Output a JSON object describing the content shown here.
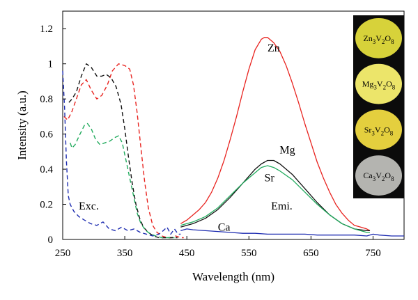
{
  "chart_data": {
    "type": "line",
    "title": "",
    "xlabel": "Wavelength (nm)",
    "ylabel": "Intensity (a.u.)",
    "xlim": [
      250,
      800
    ],
    "ylim": [
      0,
      1.3
    ],
    "x_ticks": [
      "250",
      "350",
      "450",
      "550",
      "650",
      "750"
    ],
    "x_tick_values": [
      250,
      350,
      450,
      550,
      650,
      750
    ],
    "y_ticks": [
      "0",
      "0.2",
      "0.4",
      "0.6",
      "0.8",
      "1",
      "1.2"
    ],
    "y_tick_values": [
      0,
      0.2,
      0.4,
      0.6,
      0.8,
      1.0,
      1.2
    ],
    "grid": false,
    "series": [
      {
        "name": "Zn",
        "kind": "excitation",
        "color": "#e8231f",
        "dash": true,
        "x": [
          252,
          258,
          265,
          272,
          280,
          288,
          296,
          305,
          313,
          322,
          330,
          340,
          350,
          358,
          364,
          370,
          376,
          382,
          388,
          395,
          402,
          410,
          418,
          425,
          432,
          440,
          445
        ],
        "y": [
          0.7,
          0.68,
          0.73,
          0.8,
          0.88,
          0.91,
          0.85,
          0.8,
          0.82,
          0.88,
          0.96,
          1.0,
          0.99,
          0.97,
          0.88,
          0.72,
          0.52,
          0.33,
          0.18,
          0.08,
          0.04,
          0.02,
          0.01,
          0.01,
          0.02,
          0.01,
          0.01
        ]
      },
      {
        "name": "Mg",
        "kind": "excitation",
        "color": "#111111",
        "dash": true,
        "x": [
          260,
          265,
          272,
          280,
          288,
          296,
          305,
          313,
          320,
          328,
          336,
          344,
          350,
          356,
          362,
          368,
          374,
          380,
          388,
          396,
          405,
          415,
          425,
          435
        ],
        "y": [
          0.78,
          0.8,
          0.84,
          0.93,
          1.0,
          0.98,
          0.93,
          0.93,
          0.94,
          0.92,
          0.87,
          0.77,
          0.63,
          0.47,
          0.32,
          0.2,
          0.12,
          0.07,
          0.04,
          0.02,
          0.01,
          0.01,
          0.01,
          0.01
        ]
      },
      {
        "name": "Sr",
        "kind": "excitation",
        "color": "#1faa5c",
        "dash": true,
        "x": [
          262,
          265,
          270,
          278,
          285,
          290,
          296,
          303,
          310,
          318,
          326,
          334,
          340,
          346,
          352,
          358,
          364,
          370,
          376,
          384,
          392,
          400,
          410,
          420,
          430
        ],
        "y": [
          0.55,
          0.52,
          0.54,
          0.6,
          0.65,
          0.66,
          0.63,
          0.57,
          0.54,
          0.55,
          0.56,
          0.58,
          0.59,
          0.55,
          0.45,
          0.35,
          0.25,
          0.15,
          0.09,
          0.05,
          0.03,
          0.02,
          0.01,
          0.01,
          0.01
        ]
      },
      {
        "name": "Ca",
        "kind": "excitation",
        "color": "#1c2bb0",
        "dash": true,
        "x": [
          250,
          253,
          256,
          259,
          262,
          268,
          276,
          285,
          295,
          305,
          315,
          325,
          335,
          345,
          355,
          365,
          375,
          385,
          395,
          405,
          412,
          418,
          424,
          430,
          436,
          440
        ],
        "y": [
          0.96,
          0.75,
          0.45,
          0.25,
          0.2,
          0.16,
          0.13,
          0.11,
          0.09,
          0.08,
          0.1,
          0.06,
          0.05,
          0.07,
          0.05,
          0.06,
          0.04,
          0.03,
          0.02,
          0.03,
          0.05,
          0.07,
          0.03,
          0.06,
          0.03,
          0.03
        ]
      },
      {
        "name": "Zn",
        "kind": "emission",
        "color": "#e8231f",
        "dash": false,
        "x": [
          440,
          450,
          460,
          470,
          480,
          490,
          500,
          510,
          520,
          530,
          540,
          550,
          560,
          570,
          575,
          580,
          590,
          600,
          610,
          620,
          630,
          640,
          650,
          660,
          670,
          680,
          690,
          700,
          710,
          720,
          730,
          740,
          745
        ],
        "y": [
          0.09,
          0.11,
          0.14,
          0.17,
          0.21,
          0.27,
          0.35,
          0.45,
          0.57,
          0.7,
          0.84,
          0.97,
          1.08,
          1.14,
          1.15,
          1.15,
          1.12,
          1.07,
          0.99,
          0.89,
          0.78,
          0.66,
          0.55,
          0.44,
          0.35,
          0.27,
          0.2,
          0.15,
          0.11,
          0.08,
          0.07,
          0.06,
          0.05
        ]
      },
      {
        "name": "Mg",
        "kind": "emission",
        "color": "#111111",
        "dash": false,
        "x": [
          440,
          460,
          480,
          500,
          520,
          540,
          560,
          570,
          580,
          590,
          600,
          620,
          640,
          660,
          680,
          700,
          720,
          740,
          745
        ],
        "y": [
          0.07,
          0.09,
          0.12,
          0.17,
          0.24,
          0.32,
          0.4,
          0.43,
          0.45,
          0.45,
          0.43,
          0.37,
          0.29,
          0.21,
          0.14,
          0.09,
          0.06,
          0.05,
          0.05
        ]
      },
      {
        "name": "Sr",
        "kind": "emission",
        "color": "#1faa5c",
        "dash": false,
        "x": [
          440,
          460,
          480,
          500,
          520,
          540,
          560,
          570,
          580,
          590,
          600,
          620,
          640,
          660,
          680,
          700,
          720,
          740,
          745
        ],
        "y": [
          0.08,
          0.1,
          0.13,
          0.18,
          0.25,
          0.32,
          0.38,
          0.41,
          0.42,
          0.41,
          0.39,
          0.34,
          0.27,
          0.2,
          0.14,
          0.09,
          0.06,
          0.04,
          0.04
        ]
      },
      {
        "name": "Ca",
        "kind": "emission",
        "color": "#1c2bb0",
        "dash": false,
        "x": [
          440,
          450,
          460,
          480,
          500,
          520,
          540,
          560,
          580,
          600,
          620,
          640,
          660,
          680,
          700,
          720,
          740,
          750,
          760,
          780,
          800
        ],
        "y": [
          0.05,
          0.06,
          0.055,
          0.05,
          0.045,
          0.04,
          0.035,
          0.035,
          0.03,
          0.03,
          0.03,
          0.03,
          0.025,
          0.025,
          0.025,
          0.025,
          0.02,
          0.03,
          0.025,
          0.02,
          0.02
        ]
      }
    ],
    "annotations": [
      {
        "text": "Zn",
        "x": 590,
        "y": 1.07
      },
      {
        "text": "Mg",
        "x": 612,
        "y": 0.49
      },
      {
        "text": "Sr",
        "x": 583,
        "y": 0.33
      },
      {
        "text": "Exc.",
        "x": 292,
        "y": 0.17
      },
      {
        "text": "Emi.",
        "x": 603,
        "y": 0.17
      },
      {
        "text": "Ca",
        "x": 510,
        "y": 0.05
      }
    ]
  },
  "inset": {
    "samples": [
      {
        "base": "Zn",
        "sub1": "3",
        "mid": "V",
        "sub2": "2",
        "tail": "O",
        "sub3": "8",
        "color": "#d7d23a"
      },
      {
        "base": "Mg",
        "sub1": "3",
        "mid": "V",
        "sub2": "2",
        "tail": "O",
        "sub3": "8",
        "color": "#ece56a"
      },
      {
        "base": "Sr",
        "sub1": "3",
        "mid": "V",
        "sub2": "2",
        "tail": "O",
        "sub3": "8",
        "color": "#e4cf3e"
      },
      {
        "base": "Ca",
        "sub1": "3",
        "mid": "V",
        "sub2": "2",
        "tail": "O",
        "sub3": "8",
        "color": "#b4b4b0"
      }
    ]
  }
}
